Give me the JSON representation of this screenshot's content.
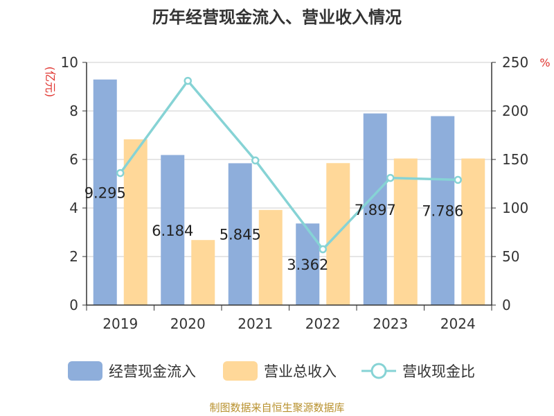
{
  "chart_data": {
    "type": "bar",
    "title": "历年经营现金流入、营业收入情况",
    "categories": [
      "2019",
      "2020",
      "2021",
      "2022",
      "2023",
      "2024"
    ],
    "series": [
      {
        "name": "经营现金流入",
        "type": "bar",
        "axis": "left",
        "color": "#8eaedb",
        "values": [
          9.295,
          6.184,
          5.845,
          3.362,
          7.897,
          7.786
        ],
        "labels": [
          "9.295",
          "6.184",
          "5.845",
          "3.362",
          "7.897",
          "7.786"
        ]
      },
      {
        "name": "营业总收入",
        "type": "bar",
        "axis": "left",
        "color": "#ffd899",
        "values": [
          6.83,
          2.68,
          3.92,
          5.85,
          6.04,
          6.04
        ]
      },
      {
        "name": "营收现金比",
        "type": "line",
        "axis": "right",
        "color": "#86d3d5",
        "values": [
          136,
          231,
          149,
          57.5,
          131,
          129
        ]
      }
    ],
    "y_left": {
      "unit": "(亿元)",
      "ylim": [
        0,
        10
      ],
      "ticks": [
        "0",
        "2",
        "4",
        "6",
        "8",
        "10"
      ]
    },
    "y_right": {
      "unit": "%",
      "ylim": [
        0,
        250
      ],
      "ticks": [
        "0",
        "50",
        "100",
        "150",
        "200",
        "250"
      ]
    },
    "grid": true,
    "legend_position": "bottom"
  },
  "footer": "制图数据来自恒生聚源数据库",
  "colors": {
    "unit_label": "#e0332e",
    "gridline": "#cccccc",
    "axis": "#333333"
  }
}
